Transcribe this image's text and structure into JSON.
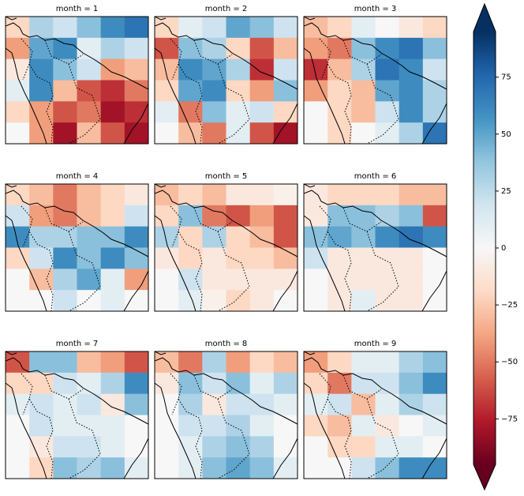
{
  "chart_data": {
    "type": "facet-heatmap",
    "panels": [
      {
        "title": "month = 1",
        "values": [
          [
            -20,
            30,
            20,
            40,
            60,
            70
          ],
          [
            -40,
            50,
            60,
            10,
            30,
            20
          ],
          [
            -10,
            60,
            40,
            20,
            -40,
            -30
          ],
          [
            10,
            60,
            -30,
            -60,
            -70,
            -50
          ],
          [
            -20,
            -40,
            -60,
            -50,
            -80,
            -70
          ],
          [
            0,
            -40,
            -80,
            -30,
            -60,
            -80
          ]
        ]
      },
      {
        "title": "month = 2",
        "values": [
          [
            -20,
            10,
            20,
            50,
            40,
            20
          ],
          [
            -60,
            40,
            30,
            -20,
            -60,
            -30
          ],
          [
            -30,
            60,
            50,
            30,
            -70,
            20
          ],
          [
            -20,
            50,
            60,
            -20,
            -40,
            40
          ],
          [
            10,
            -50,
            40,
            10,
            20,
            -20
          ],
          [
            0,
            -30,
            -50,
            10,
            -60,
            -80
          ]
        ]
      },
      {
        "title": "month = 3",
        "values": [
          [
            -30,
            -20,
            10,
            0,
            -10,
            -20
          ],
          [
            -40,
            -50,
            40,
            60,
            70,
            40
          ],
          [
            -70,
            -30,
            30,
            70,
            60,
            20
          ],
          [
            -40,
            -20,
            -30,
            50,
            60,
            30
          ],
          [
            0,
            -20,
            -30,
            20,
            60,
            30
          ],
          [
            0,
            -20,
            0,
            10,
            30,
            70
          ]
        ]
      },
      {
        "title": "month = 4",
        "values": [
          [
            -20,
            -30,
            -50,
            -30,
            -20,
            -10
          ],
          [
            20,
            -40,
            -50,
            -30,
            -20,
            20
          ],
          [
            60,
            30,
            30,
            40,
            40,
            60
          ],
          [
            -20,
            20,
            60,
            40,
            60,
            40
          ],
          [
            0,
            -30,
            30,
            50,
            10,
            -40
          ],
          [
            0,
            0,
            20,
            0,
            10,
            0
          ]
        ]
      },
      {
        "title": "month = 5",
        "values": [
          [
            -30,
            -20,
            -30,
            -10,
            -10,
            -5
          ],
          [
            -20,
            40,
            -50,
            -60,
            -40,
            -60
          ],
          [
            30,
            -20,
            30,
            -20,
            -30,
            -60
          ],
          [
            -10,
            -20,
            -10,
            -20,
            -20,
            -30
          ],
          [
            0,
            20,
            -10,
            -10,
            -10,
            -10
          ],
          [
            0,
            10,
            -5,
            -20,
            -10,
            0
          ]
        ]
      },
      {
        "title": "month = 6",
        "values": [
          [
            -10,
            -20,
            -20,
            -20,
            -30,
            -30
          ],
          [
            -10,
            40,
            40,
            30,
            40,
            -60
          ],
          [
            40,
            50,
            40,
            60,
            70,
            60
          ],
          [
            20,
            -10,
            -10,
            -10,
            -10,
            0
          ],
          [
            0,
            -10,
            -10,
            -10,
            -10,
            0
          ],
          [
            0,
            -10,
            10,
            -10,
            -10,
            0
          ]
        ]
      },
      {
        "title": "month = 7",
        "values": [
          [
            -60,
            40,
            40,
            -30,
            -40,
            -60
          ],
          [
            -20,
            -20,
            20,
            10,
            30,
            60
          ],
          [
            10,
            20,
            10,
            20,
            -10,
            40
          ],
          [
            0,
            20,
            10,
            10,
            10,
            0
          ],
          [
            0,
            -10,
            20,
            20,
            10,
            0
          ],
          [
            0,
            -20,
            40,
            30,
            40,
            10
          ]
        ]
      },
      {
        "title": "month = 8",
        "values": [
          [
            -30,
            -50,
            30,
            -40,
            -20,
            -30
          ],
          [
            -10,
            40,
            20,
            40,
            10,
            30
          ],
          [
            0,
            30,
            -10,
            20,
            20,
            10
          ],
          [
            0,
            20,
            20,
            30,
            10,
            0
          ],
          [
            0,
            10,
            30,
            40,
            30,
            0
          ],
          [
            0,
            10,
            40,
            50,
            40,
            10
          ]
        ]
      },
      {
        "title": "month = 9",
        "values": [
          [
            -40,
            -20,
            10,
            10,
            30,
            40
          ],
          [
            -20,
            -50,
            20,
            20,
            40,
            60
          ],
          [
            10,
            20,
            -30,
            10,
            30,
            20
          ],
          [
            -20,
            -30,
            10,
            -10,
            0,
            10
          ],
          [
            0,
            -20,
            -20,
            10,
            10,
            0
          ],
          [
            0,
            0,
            20,
            40,
            60,
            60
          ]
        ]
      }
    ],
    "colormap": [
      "#67001f",
      "#b2182b",
      "#d6604d",
      "#f4a582",
      "#fddbc7",
      "#f7f7f7",
      "#d1e5f0",
      "#92c5de",
      "#4393c3",
      "#2166ac",
      "#053061"
    ],
    "clim": [
      -95,
      95
    ],
    "cticks": [
      {
        "value": -75,
        "label": "−75"
      },
      {
        "value": -50,
        "label": "−50"
      },
      {
        "value": -25,
        "label": "−25"
      },
      0,
      25,
      50,
      75
    ]
  }
}
